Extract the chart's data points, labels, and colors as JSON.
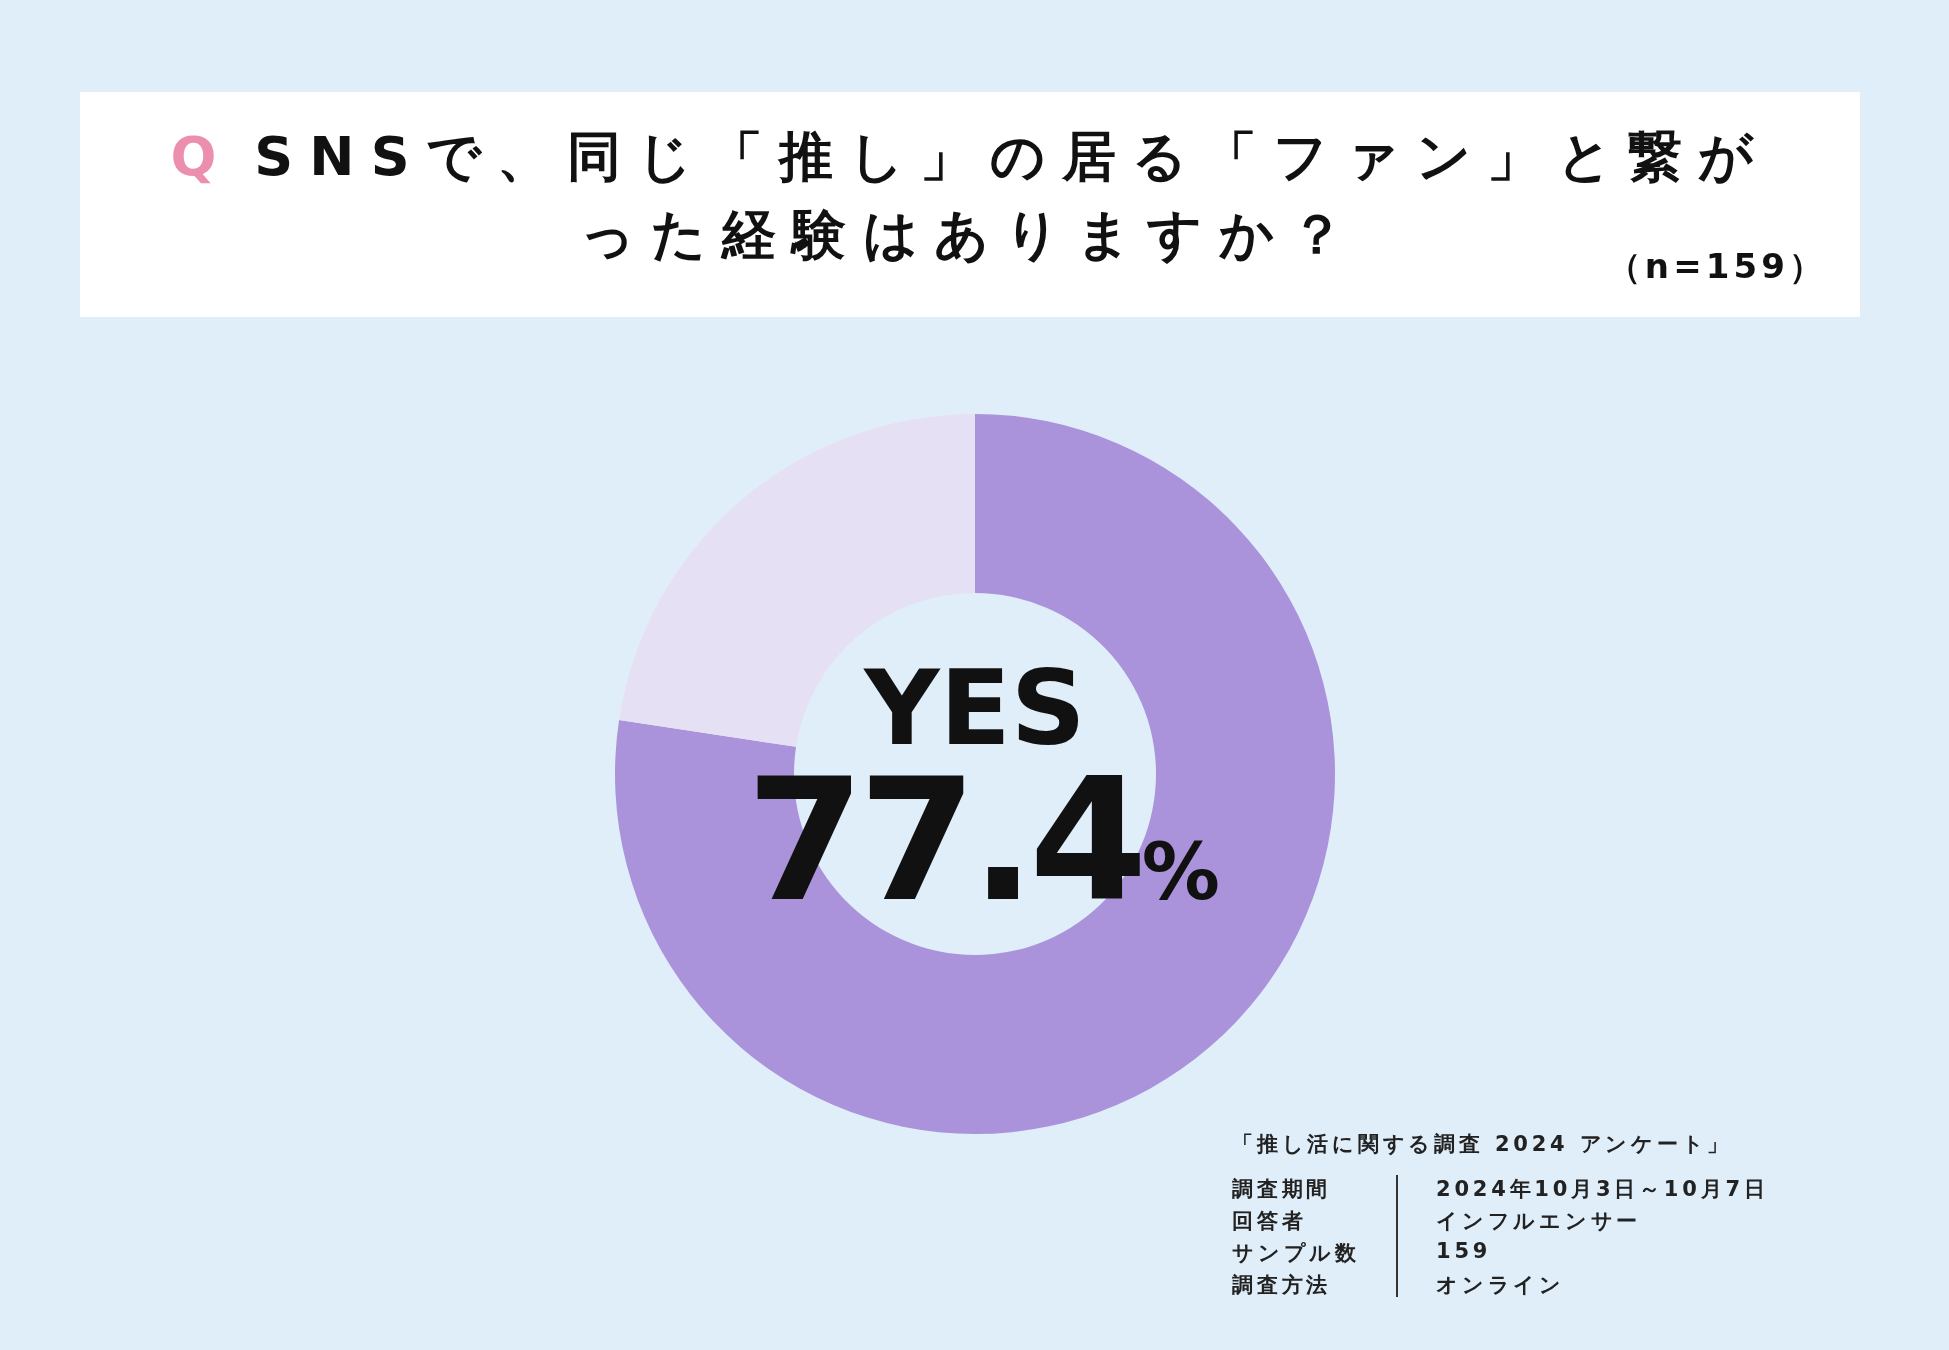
{
  "chart_data": {
    "type": "donut",
    "title": "Q SNSで、同じ「推し」の居る「ファン」と繋がった経験はありますか？",
    "subtitle": "（n=159）",
    "categories": [
      "YES",
      null
    ],
    "values": [
      77.4,
      22.6
    ],
    "colors": [
      "#ab93dc",
      "#e6e0f4"
    ],
    "value_labels": [
      "77.4%",
      null
    ],
    "annotations": [
      "「推し活に関する調査 2024 アンケート」",
      "調査期間",
      "2024年10月3日～10月7日",
      "回答者",
      "インフルエンサー",
      "サンプル数",
      "159",
      "調査方法",
      "オンライン"
    ]
  }
}
